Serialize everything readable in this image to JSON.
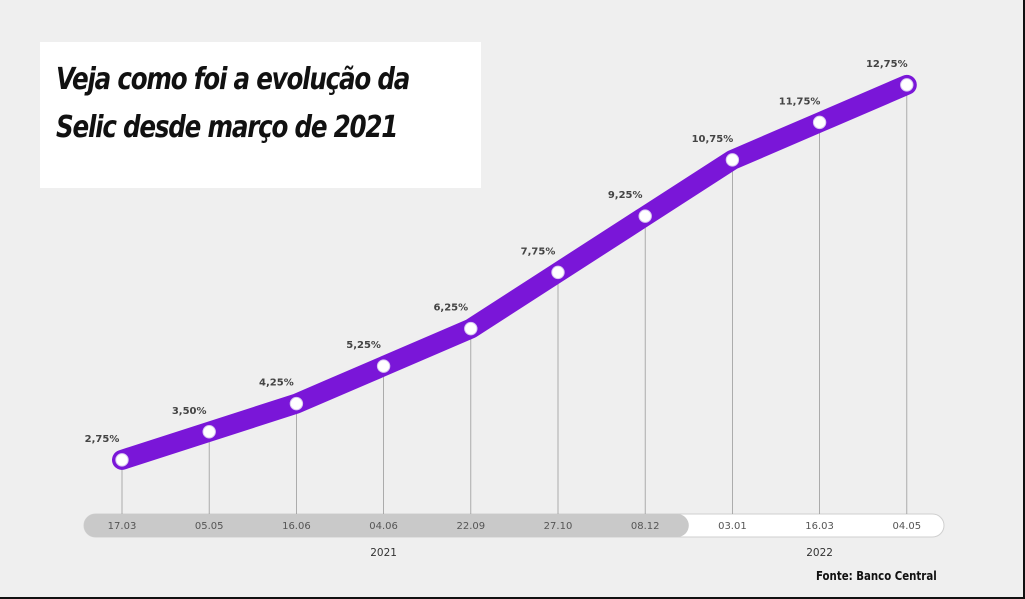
{
  "title": {
    "line1": "Veja como foi a evolução da",
    "line2": "Selic desde março de 2021"
  },
  "source": "Fonte: Banco Central",
  "colors": {
    "line": "#7a16d8",
    "marker_fill": "#ffffff",
    "timeline_past": "#c9c9c9",
    "timeline_future": "#ffffff",
    "background": "#efefef"
  },
  "chart_data": {
    "type": "line",
    "categories": [
      "17.03",
      "05.05",
      "16.06",
      "04.06",
      "22.09",
      "27.10",
      "08.12",
      "03.01",
      "16.03",
      "04.05"
    ],
    "values": [
      2.75,
      3.5,
      4.25,
      5.25,
      6.25,
      7.75,
      9.25,
      10.75,
      11.75,
      12.75
    ],
    "value_labels": [
      "2,75%",
      "3,50%",
      "4,25%",
      "5,25%",
      "6,25%",
      "7,75%",
      "9,25%",
      "10,75%",
      "11,75%",
      "12,75%"
    ],
    "years": [
      {
        "label": "2021",
        "categories": [
          "17.03",
          "05.05",
          "16.06",
          "04.06",
          "22.09",
          "27.10",
          "08.12"
        ]
      },
      {
        "label": "2022",
        "categories": [
          "03.01",
          "16.03",
          "04.05"
        ]
      }
    ],
    "title": "Veja como foi a evolução da Selic desde março de 2021",
    "xlabel": "",
    "ylabel": "",
    "grid": false
  }
}
